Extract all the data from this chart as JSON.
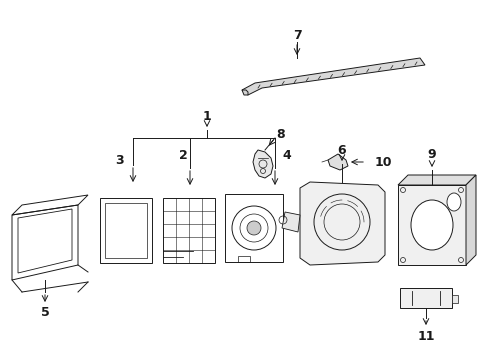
{
  "bg_color": "#ffffff",
  "line_color": "#1a1a1a",
  "lw": 0.7,
  "parts": [
    "1",
    "2",
    "3",
    "4",
    "5",
    "6",
    "7",
    "8",
    "9",
    "10",
    "11"
  ]
}
